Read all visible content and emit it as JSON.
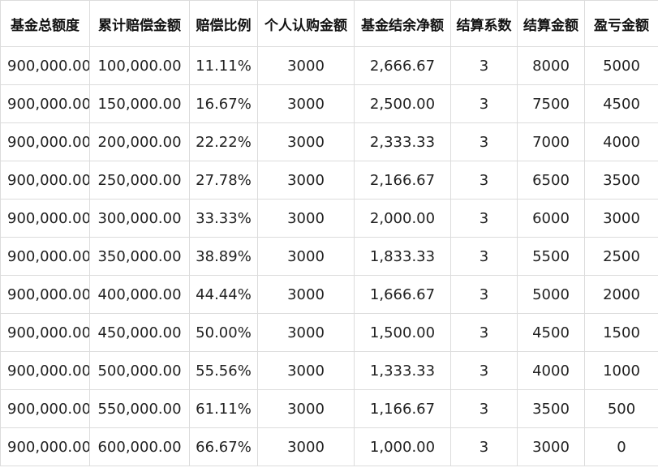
{
  "table": {
    "headers": [
      "基金总额度",
      "累计赔偿金额",
      "赔偿比例",
      "个人认购金额",
      "基金结余净额",
      "结算系数",
      "结算金额",
      "盈亏金额"
    ],
    "rows": [
      [
        "900,000.00",
        "100,000.00",
        "11.11%",
        "3000",
        "2,666.67",
        "3",
        "8000",
        "5000"
      ],
      [
        "900,000.00",
        "150,000.00",
        "16.67%",
        "3000",
        "2,500.00",
        "3",
        "7500",
        "4500"
      ],
      [
        "900,000.00",
        "200,000.00",
        "22.22%",
        "3000",
        "2,333.33",
        "3",
        "7000",
        "4000"
      ],
      [
        "900,000.00",
        "250,000.00",
        "27.78%",
        "3000",
        "2,166.67",
        "3",
        "6500",
        "3500"
      ],
      [
        "900,000.00",
        "300,000.00",
        "33.33%",
        "3000",
        "2,000.00",
        "3",
        "6000",
        "3000"
      ],
      [
        "900,000.00",
        "350,000.00",
        "38.89%",
        "3000",
        "1,833.33",
        "3",
        "5500",
        "2500"
      ],
      [
        "900,000.00",
        "400,000.00",
        "44.44%",
        "3000",
        "1,666.67",
        "3",
        "5000",
        "2000"
      ],
      [
        "900,000.00",
        "450,000.00",
        "50.00%",
        "3000",
        "1,500.00",
        "3",
        "4500",
        "1500"
      ],
      [
        "900,000.00",
        "500,000.00",
        "55.56%",
        "3000",
        "1,333.33",
        "3",
        "4000",
        "1000"
      ],
      [
        "900,000.00",
        "550,000.00",
        "61.11%",
        "3000",
        "1,166.67",
        "3",
        "3500",
        "500"
      ],
      [
        "900,000.00",
        "600,000.00",
        "66.67%",
        "3000",
        "1,000.00",
        "3",
        "3000",
        "0"
      ]
    ]
  }
}
